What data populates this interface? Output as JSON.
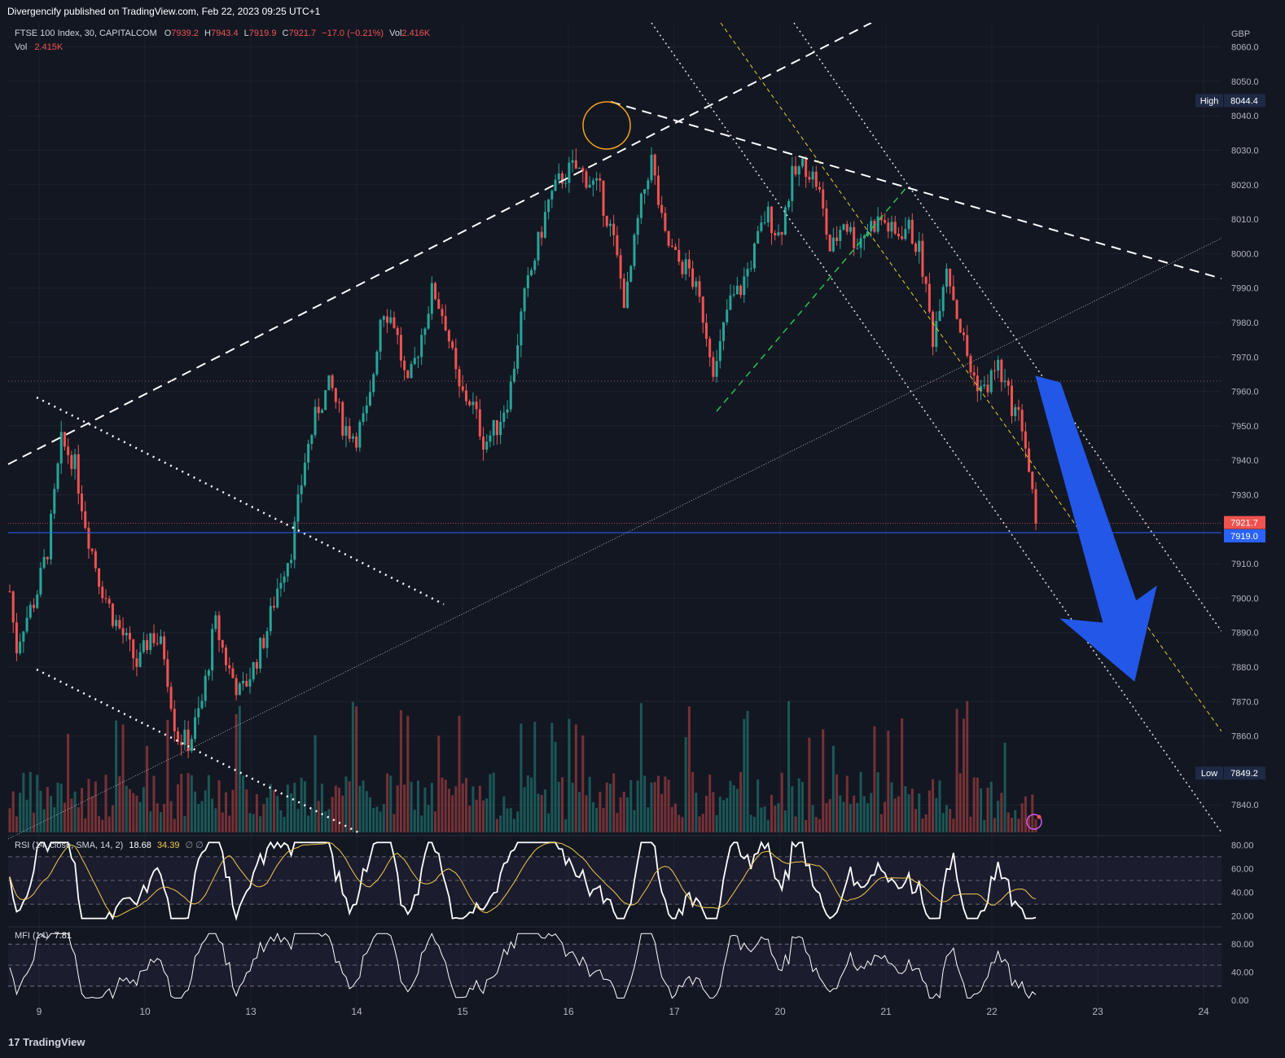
{
  "header": {
    "publisher": "Divergencify published on TradingView.com, Feb 22, 2023 09:25 UTC+1"
  },
  "legend": {
    "symbol": "FTSE 100 Index, 30, CAPITALCOM",
    "o_label": "O",
    "o_val": "7939.2",
    "h_label": "H",
    "h_val": "7943.4",
    "l_label": "L",
    "l_val": "7919.9",
    "c_label": "C",
    "c_val": "7921.7",
    "change": "−17.0 (−0.21%)",
    "vol_label": "Vol",
    "vol_val": "2.416K",
    "vol2_label": "Vol",
    "vol2_val": "2.415K"
  },
  "rsi_legend": {
    "label": "RSI (14, close, SMA, 14, 2)",
    "v1": "18.68",
    "v2": "34.39",
    "v3": "∅  ∅"
  },
  "mfi_legend": {
    "label": "MFI (14)",
    "v1": "7.81"
  },
  "price_axis": {
    "currency": "GBP",
    "ticks": [
      "8060.0",
      "8050.0",
      "8040.0",
      "8030.0",
      "8020.0",
      "8010.0",
      "8000.0",
      "7990.0",
      "7980.0",
      "7970.0",
      "7960.0",
      "7950.0",
      "7940.0",
      "7930.0",
      "7910.0",
      "7900.0",
      "7890.0",
      "7880.0",
      "7870.0",
      "7860.0",
      "7840.0"
    ],
    "high_label": "High",
    "high_val": "8044.4",
    "low_label": "Low",
    "low_val": "7849.2",
    "last_price": "7921.7",
    "level_price": "7919.0"
  },
  "rsi_axis": [
    "80.00",
    "60.00",
    "40.00",
    "20.00"
  ],
  "mfi_axis": [
    "80.00",
    "40.00",
    "0.00"
  ],
  "x_axis": [
    "9",
    "10",
    "13",
    "14",
    "15",
    "16",
    "17",
    "20",
    "21",
    "22",
    "23",
    "24"
  ],
  "colors": {
    "bg": "#131722",
    "up": "#26a69a",
    "down": "#ef5350",
    "grid": "#1e222d",
    "level": "#2962ff",
    "arrow": "#2357e8",
    "circle": "#f7a21b"
  },
  "chart_data": {
    "type": "candlestick",
    "title": "FTSE 100 Index, 30, CAPITALCOM",
    "ylabel": "GBP",
    "ylim": [
      7832,
      8067
    ],
    "high": 8044.4,
    "low": 7849.2,
    "last": 7921.7,
    "level": 7919.0,
    "close_path": [
      {
        "x": 0,
        "y": 7902
      },
      {
        "x": 0.5,
        "y": 7885
      },
      {
        "x": 1,
        "y": 7892
      },
      {
        "x": 2,
        "y": 7900
      },
      {
        "x": 3,
        "y": 7915
      },
      {
        "x": 4,
        "y": 7945
      },
      {
        "x": 5,
        "y": 7940
      },
      {
        "x": 6,
        "y": 7920
      },
      {
        "x": 7,
        "y": 7905
      },
      {
        "x": 8,
        "y": 7895
      },
      {
        "x": 9,
        "y": 7888
      },
      {
        "x": 10,
        "y": 7880
      },
      {
        "x": 11,
        "y": 7890
      },
      {
        "x": 12,
        "y": 7885
      },
      {
        "x": 13,
        "y": 7860
      },
      {
        "x": 14,
        "y": 7858
      },
      {
        "x": 15,
        "y": 7870
      },
      {
        "x": 16,
        "y": 7893
      },
      {
        "x": 17,
        "y": 7880
      },
      {
        "x": 18,
        "y": 7872
      },
      {
        "x": 19,
        "y": 7880
      },
      {
        "x": 20,
        "y": 7890
      },
      {
        "x": 21,
        "y": 7905
      },
      {
        "x": 22,
        "y": 7915
      },
      {
        "x": 23,
        "y": 7940
      },
      {
        "x": 24,
        "y": 7955
      },
      {
        "x": 25,
        "y": 7962
      },
      {
        "x": 26,
        "y": 7950
      },
      {
        "x": 27,
        "y": 7947
      },
      {
        "x": 28,
        "y": 7955
      },
      {
        "x": 29,
        "y": 7985
      },
      {
        "x": 30,
        "y": 7980
      },
      {
        "x": 31,
        "y": 7960
      },
      {
        "x": 32,
        "y": 7975
      },
      {
        "x": 33,
        "y": 7990
      },
      {
        "x": 34,
        "y": 7980
      },
      {
        "x": 35,
        "y": 7960
      },
      {
        "x": 36,
        "y": 7957
      },
      {
        "x": 37,
        "y": 7945
      },
      {
        "x": 38,
        "y": 7950
      },
      {
        "x": 39,
        "y": 7960
      },
      {
        "x": 40,
        "y": 7985
      },
      {
        "x": 41,
        "y": 8000
      },
      {
        "x": 42,
        "y": 8015
      },
      {
        "x": 43,
        "y": 8022
      },
      {
        "x": 44,
        "y": 8025
      },
      {
        "x": 45,
        "y": 8022
      },
      {
        "x": 46,
        "y": 8018
      },
      {
        "x": 47,
        "y": 8005
      },
      {
        "x": 48,
        "y": 7985
      },
      {
        "x": 49,
        "y": 8010
      },
      {
        "x": 50,
        "y": 8028
      },
      {
        "x": 51,
        "y": 8005
      },
      {
        "x": 52,
        "y": 7998
      },
      {
        "x": 53,
        "y": 7995
      },
      {
        "x": 54,
        "y": 7983
      },
      {
        "x": 55,
        "y": 7965
      },
      {
        "x": 56,
        "y": 7985
      },
      {
        "x": 57,
        "y": 7990
      },
      {
        "x": 58,
        "y": 8000
      },
      {
        "x": 59,
        "y": 8012
      },
      {
        "x": 60,
        "y": 8005
      },
      {
        "x": 61,
        "y": 8022
      },
      {
        "x": 62,
        "y": 8026
      },
      {
        "x": 63,
        "y": 8020
      },
      {
        "x": 64,
        "y": 8000
      },
      {
        "x": 65,
        "y": 8010
      },
      {
        "x": 66,
        "y": 8003
      },
      {
        "x": 67,
        "y": 8008
      },
      {
        "x": 68,
        "y": 8010
      },
      {
        "x": 69,
        "y": 8005
      },
      {
        "x": 70,
        "y": 8008
      },
      {
        "x": 71,
        "y": 8000
      },
      {
        "x": 72,
        "y": 7975
      },
      {
        "x": 73,
        "y": 7998
      },
      {
        "x": 74,
        "y": 7980
      },
      {
        "x": 75,
        "y": 7965
      },
      {
        "x": 76,
        "y": 7960
      },
      {
        "x": 77,
        "y": 7968
      },
      {
        "x": 78,
        "y": 7957
      },
      {
        "x": 79,
        "y": 7950
      },
      {
        "x": 80,
        "y": 7921.7
      }
    ],
    "pane_rsi": {
      "name": "RSI (14, close, SMA, 14, 2)",
      "last": 18.68,
      "sma": 34.39,
      "ylim": [
        15,
        85
      ],
      "bands": [
        70,
        50,
        30
      ]
    },
    "pane_mfi": {
      "name": "MFI (14)",
      "last": 7.81,
      "ylim": [
        0,
        100
      ],
      "bands": [
        80,
        50,
        20
      ]
    },
    "x_categories": [
      "9",
      "10",
      "13",
      "14",
      "15",
      "16",
      "17",
      "20",
      "21",
      "22",
      "23",
      "24"
    ]
  }
}
